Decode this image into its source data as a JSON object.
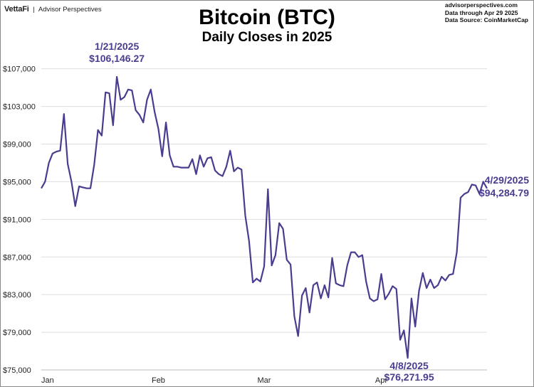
{
  "header": {
    "brand_logo": "VettaFi",
    "brand_separator": "|",
    "brand_name": "Advisor Perspectives",
    "source_lines": [
      "advisorperspectives.com",
      "Data through  Apr 29 2025",
      "Data Source: CoinMarketCap"
    ]
  },
  "chart_data": {
    "type": "line",
    "title": "Bitcoin (BTC)",
    "subtitle": "Daily Closes in 2025",
    "xlabel": "",
    "ylabel": "",
    "x_tick_labels": [
      "Jan",
      "Feb",
      "Mar",
      "Apr"
    ],
    "x_tick_days": [
      1,
      32,
      60,
      91
    ],
    "y_ticks": [
      75000,
      79000,
      83000,
      87000,
      91000,
      95000,
      99000,
      103000,
      107000
    ],
    "y_tick_labels": [
      "$75,000",
      "$79,000",
      "$83,000",
      "$87,000",
      "$91,000",
      "$95,000",
      "$99,000",
      "$103,000",
      "$107,000"
    ],
    "ylim": [
      75000,
      110000
    ],
    "x_range": [
      "2025-01-01",
      "2025-04-29"
    ],
    "grid": true,
    "legend": "none",
    "line_color": "#4b3c8f",
    "series": [
      {
        "dates": [
          "2025-01-01",
          "2025-01-02",
          "2025-01-03",
          "2025-01-04",
          "2025-01-05",
          "2025-01-06",
          "2025-01-07",
          "2025-01-08",
          "2025-01-09",
          "2025-01-10",
          "2025-01-11",
          "2025-01-12",
          "2025-01-13",
          "2025-01-14",
          "2025-01-15",
          "2025-01-16",
          "2025-01-17",
          "2025-01-18",
          "2025-01-19",
          "2025-01-20",
          "2025-01-21",
          "2025-01-22",
          "2025-01-23",
          "2025-01-24",
          "2025-01-25",
          "2025-01-26",
          "2025-01-27",
          "2025-01-28",
          "2025-01-29",
          "2025-01-30",
          "2025-01-31",
          "2025-02-01",
          "2025-02-02",
          "2025-02-03",
          "2025-02-04",
          "2025-02-05",
          "2025-02-06",
          "2025-02-07",
          "2025-02-08",
          "2025-02-09",
          "2025-02-10",
          "2025-02-11",
          "2025-02-12",
          "2025-02-13",
          "2025-02-14",
          "2025-02-15",
          "2025-02-16",
          "2025-02-17",
          "2025-02-18",
          "2025-02-19",
          "2025-02-20",
          "2025-02-21",
          "2025-02-22",
          "2025-02-23",
          "2025-02-24",
          "2025-02-25",
          "2025-02-26",
          "2025-02-27",
          "2025-02-28",
          "2025-03-01",
          "2025-03-02",
          "2025-03-03",
          "2025-03-04",
          "2025-03-05",
          "2025-03-06",
          "2025-03-07",
          "2025-03-08",
          "2025-03-09",
          "2025-03-10",
          "2025-03-11",
          "2025-03-12",
          "2025-03-13",
          "2025-03-14",
          "2025-03-15",
          "2025-03-16",
          "2025-03-17",
          "2025-03-18",
          "2025-03-19",
          "2025-03-20",
          "2025-03-21",
          "2025-03-22",
          "2025-03-23",
          "2025-03-24",
          "2025-03-25",
          "2025-03-26",
          "2025-03-27",
          "2025-03-28",
          "2025-03-29",
          "2025-03-30",
          "2025-03-31",
          "2025-04-01",
          "2025-04-02",
          "2025-04-03",
          "2025-04-04",
          "2025-04-05",
          "2025-04-06",
          "2025-04-07",
          "2025-04-08",
          "2025-04-09",
          "2025-04-10",
          "2025-04-11",
          "2025-04-12",
          "2025-04-13",
          "2025-04-14",
          "2025-04-15",
          "2025-04-16",
          "2025-04-17",
          "2025-04-18",
          "2025-04-19",
          "2025-04-20",
          "2025-04-21",
          "2025-04-22",
          "2025-04-23",
          "2025-04-24",
          "2025-04-25",
          "2025-04-26",
          "2025-04-27",
          "2025-04-28",
          "2025-04-29"
        ],
        "values": [
          94300,
          95000,
          97000,
          98000,
          98200,
          98300,
          102200,
          96900,
          95000,
          92400,
          94500,
          94400,
          94300,
          94300,
          96800,
          100500,
          99900,
          104500,
          104400,
          101000,
          106146.27,
          103700,
          104000,
          104800,
          104700,
          102600,
          102100,
          101300,
          103700,
          104800,
          102400,
          100600,
          97700,
          101300,
          97800,
          96600,
          96600,
          96500,
          96500,
          96500,
          97400,
          95800,
          97800,
          96600,
          97500,
          97600,
          96200,
          95800,
          95600,
          96600,
          98300,
          96100,
          96500,
          96300,
          91400,
          88700,
          84300,
          84700,
          84400,
          86000,
          94200,
          86100,
          87200,
          90600,
          90000,
          86700,
          86200,
          80700,
          78600,
          82900,
          83700,
          81100,
          84000,
          84300,
          82600,
          84000,
          82700,
          86900,
          84200,
          84000,
          83900,
          86100,
          87500,
          87500,
          87000,
          87200,
          84400,
          82600,
          82300,
          82500,
          85200,
          82500,
          83100,
          83900,
          83600,
          78200,
          79200,
          76271.95,
          82600,
          79600,
          83400,
          85300,
          83700,
          84600,
          83700,
          84000,
          84900,
          84500,
          85100,
          85200,
          87500,
          93300,
          93700,
          93900,
          94700,
          94600,
          93700,
          95000,
          94284.79
        ]
      }
    ],
    "annotations": [
      {
        "date": "2025-01-21",
        "value": 106146.27,
        "date_label": "1/21/2025",
        "value_label": "$106,146.27"
      },
      {
        "date": "2025-04-08",
        "value": 76271.95,
        "date_label": "4/8/2025",
        "value_label": "$76,271.95"
      },
      {
        "date": "2025-04-29",
        "value": 94284.79,
        "date_label": "4/29/2025",
        "value_label": "$94,284.79"
      }
    ]
  }
}
